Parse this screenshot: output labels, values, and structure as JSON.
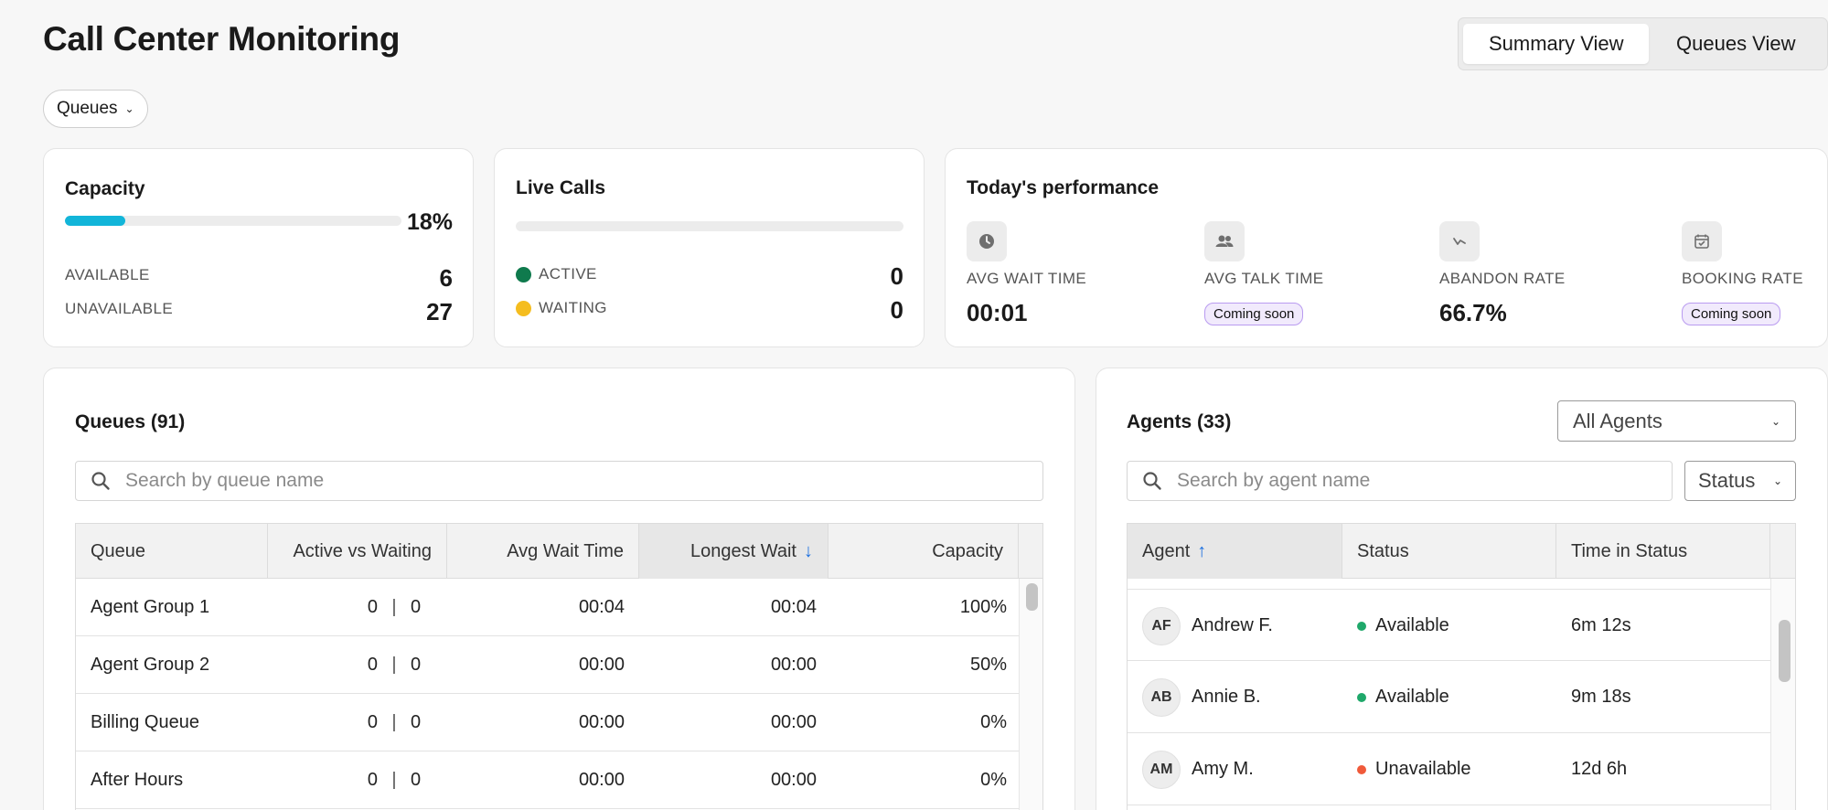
{
  "page": {
    "title": "Call Center Monitoring"
  },
  "view_toggle": {
    "summary": "Summary View",
    "queues": "Queues View"
  },
  "filter": {
    "queues_label": "Queues"
  },
  "capacity": {
    "title": "Capacity",
    "percent": 18,
    "percent_label": "18%",
    "available_label": "AVAILABLE",
    "available_value": "6",
    "unavailable_label": "UNAVAILABLE",
    "unavailable_value": "27"
  },
  "live_calls": {
    "title": "Live Calls",
    "active_label": "ACTIVE",
    "active_value": "0",
    "active_color": "#0f7a4d",
    "waiting_label": "WAITING",
    "waiting_value": "0",
    "waiting_color": "#f5bd1f"
  },
  "performance": {
    "title": "Today's performance",
    "avg_wait_label": "AVG WAIT TIME",
    "avg_wait_value": "00:01",
    "avg_talk_label": "AVG TALK TIME",
    "avg_talk_badge": "Coming soon",
    "abandon_label": "ABANDON RATE",
    "abandon_value": "66.7%",
    "booking_label": "BOOKING RATE",
    "booking_badge": "Coming soon"
  },
  "queues_panel": {
    "title": "Queues (91)",
    "search_placeholder": "Search by queue name",
    "columns": [
      "Queue",
      "Active vs Waiting",
      "Avg Wait Time",
      "Longest Wait",
      "Capacity"
    ],
    "sort_arrow": "↓",
    "rows": [
      {
        "queue": "Agent Group 1",
        "active": "0",
        "waiting": "0",
        "avg_wait": "00:04",
        "longest_wait": "00:04",
        "capacity": "100%"
      },
      {
        "queue": "Agent Group 2",
        "active": "0",
        "waiting": "0",
        "avg_wait": "00:00",
        "longest_wait": "00:00",
        "capacity": "50%"
      },
      {
        "queue": "Billing Queue",
        "active": "0",
        "waiting": "0",
        "avg_wait": "00:00",
        "longest_wait": "00:00",
        "capacity": "0%"
      },
      {
        "queue": "After Hours",
        "active": "0",
        "waiting": "0",
        "avg_wait": "00:00",
        "longest_wait": "00:00",
        "capacity": "0%"
      }
    ],
    "separator": "|"
  },
  "agents_panel": {
    "title": "Agents (33)",
    "filter_value": "All Agents",
    "search_placeholder": "Search by agent name",
    "status_filter": "Status",
    "columns": [
      "Agent",
      "Status",
      "Time in Status"
    ],
    "sort_arrow": "↑",
    "rows": [
      {
        "initials": "AF",
        "name": "Andrew F.",
        "status": "Available",
        "status_color": "#1fa86a",
        "time": "6m 12s"
      },
      {
        "initials": "AB",
        "name": "Annie B.",
        "status": "Available",
        "status_color": "#1fa86a",
        "time": "9m 18s"
      },
      {
        "initials": "AM",
        "name": "Amy M.",
        "status": "Unavailable",
        "status_color": "#f05a3a",
        "time": "12d 6h"
      }
    ]
  }
}
